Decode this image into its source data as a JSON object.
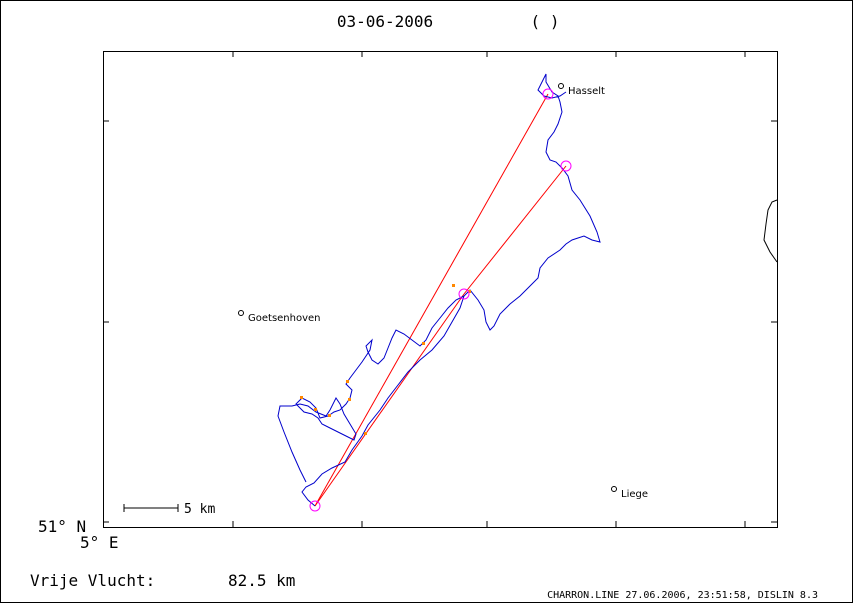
{
  "header": {
    "date": "03-06-2006",
    "pilot": "( )"
  },
  "map": {
    "corner_lat_label": "51° N",
    "corner_lon_label": "5° E",
    "scale_label": "5 km",
    "cities": [
      {
        "name": "Hasselt"
      },
      {
        "name": "Goetsenhoven"
      },
      {
        "name": "Liege"
      }
    ]
  },
  "footer": {
    "distance_caption": "Vrije Vlucht:",
    "distance_value": "82.5 km",
    "credit": "CHARRON.LINE 27.06.2006, 23:51:58, DISLIN 8.3"
  },
  "colors": {
    "track": "#0000cc",
    "task": "#ff0000",
    "turnpoint": "#ff00ff",
    "frame": "#000000"
  }
}
